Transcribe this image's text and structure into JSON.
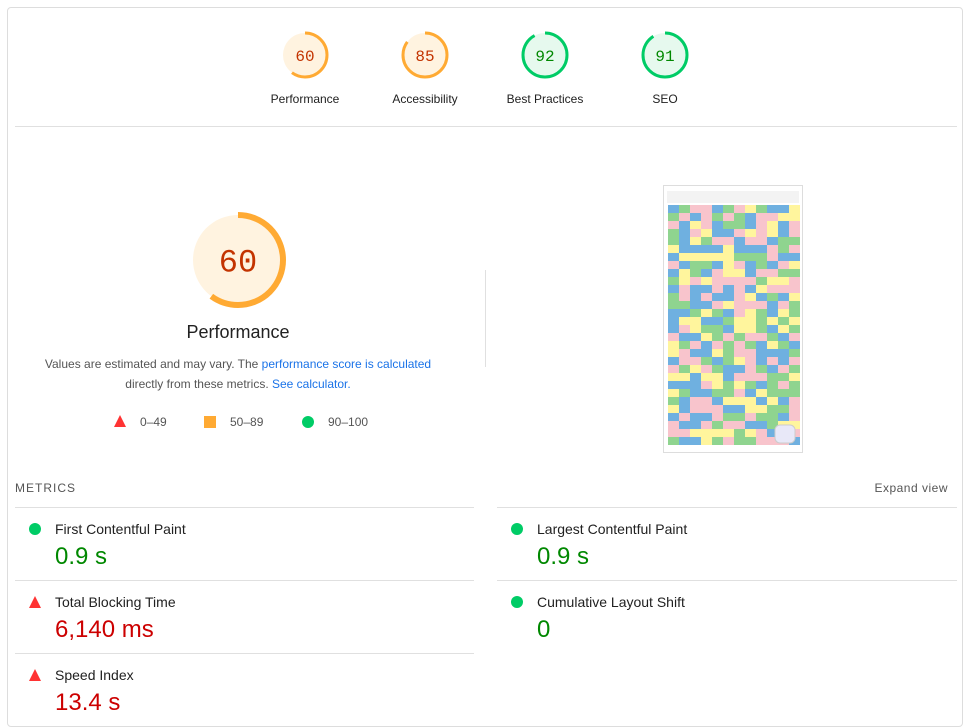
{
  "categories": [
    {
      "label": "Performance",
      "score": 60
    },
    {
      "label": "Accessibility",
      "score": 85
    },
    {
      "label": "Best Practices",
      "score": 92
    },
    {
      "label": "SEO",
      "score": 91
    }
  ],
  "performance": {
    "score": 60,
    "title": "Performance",
    "description": {
      "text1": "Values are estimated and may vary. The ",
      "link1": "performance score is calculated",
      "text2": " directly from these metrics. ",
      "link2": "See calculator."
    }
  },
  "legend": [
    "0–49",
    "50–89",
    "90–100"
  ],
  "metrics": {
    "heading": "METRICS",
    "expand": "Expand view",
    "items": [
      {
        "label": "First Contentful Paint",
        "value": "0.9 s",
        "rating": "pass"
      },
      {
        "label": "Largest Contentful Paint",
        "value": "0.9 s",
        "rating": "pass"
      },
      {
        "label": "Total Blocking Time",
        "value": "6,140 ms",
        "rating": "fail"
      },
      {
        "label": "Cumulative Layout Shift",
        "value": "0",
        "rating": "pass"
      },
      {
        "label": "Speed Index",
        "value": "13.4 s",
        "rating": "fail"
      }
    ]
  }
}
